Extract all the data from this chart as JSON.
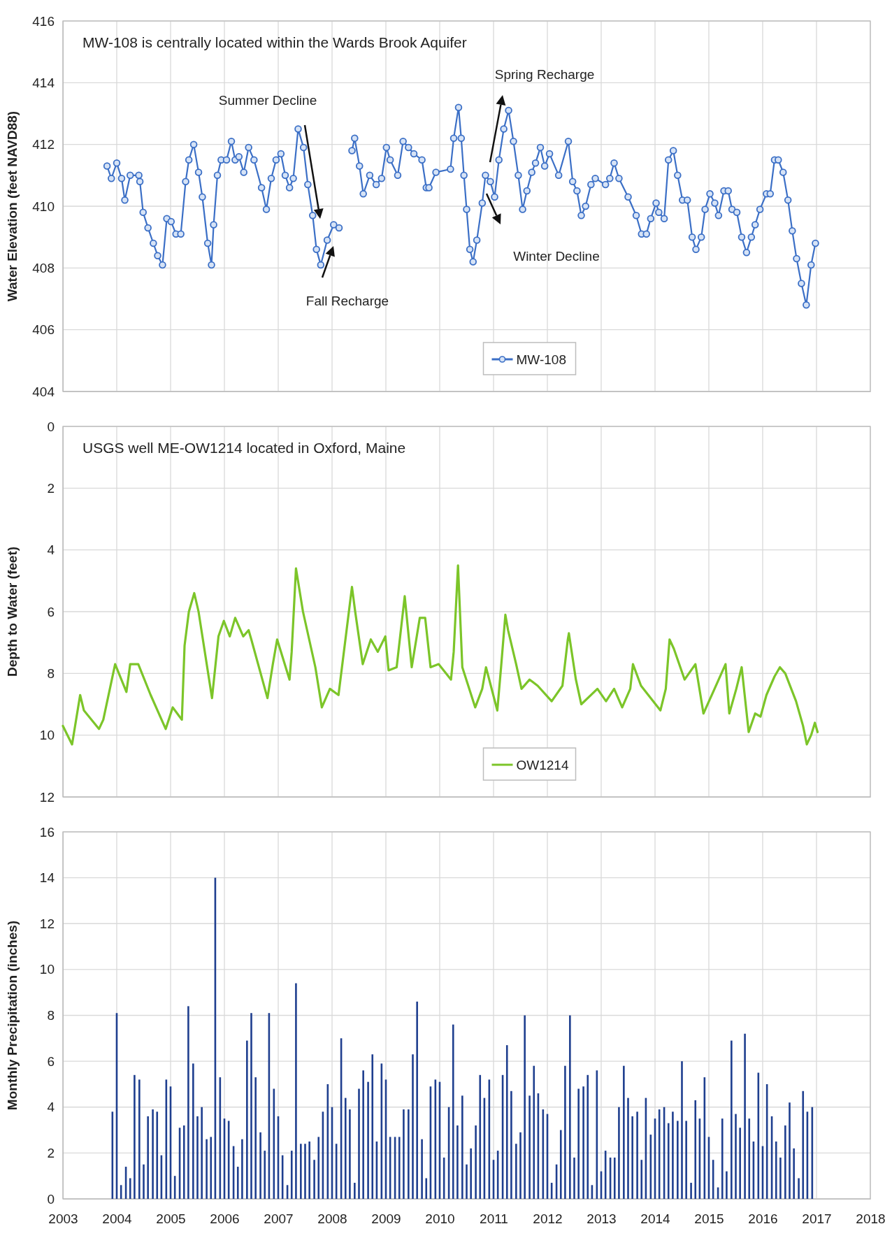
{
  "chart_data": [
    {
      "type": "line",
      "title": "MW-108 is centrally located within the Wards Brook Aquifer",
      "ylabel": "Water Elevation (feet NAVD88)",
      "xlim": [
        2003,
        2018
      ],
      "xticks": [
        2003,
        2004,
        2005,
        2006,
        2007,
        2008,
        2009,
        2010,
        2011,
        2012,
        2013,
        2014,
        2015,
        2016,
        2017,
        2018
      ],
      "ylim": [
        404,
        416
      ],
      "yticks": [
        404,
        406,
        408,
        410,
        412,
        414,
        416
      ],
      "tick_labels": "y",
      "grid": true,
      "legend": "bottom",
      "marker": "circle",
      "annotations": [
        "Summer Decline",
        "Fall Recharge",
        "Spring Recharge",
        "Winter Decline"
      ],
      "series": [
        {
          "name": "MW-108",
          "color": "#3b6fc6",
          "x": [
            2003.82,
            2003.9,
            2004.0,
            2004.09,
            2004.15,
            2004.25,
            2004.41,
            2004.43,
            2004.49,
            2004.58,
            2004.68,
            2004.76,
            2004.85,
            2004.93,
            2005.01,
            2005.1,
            2005.19,
            2005.28,
            2005.34,
            2005.43,
            2005.52,
            2005.59,
            2005.69,
            2005.76,
            2005.8,
            2005.87,
            2005.94,
            2006.04,
            2006.13,
            2006.2,
            2006.27,
            2006.36,
            2006.45,
            2006.55,
            2006.69,
            2006.78,
            2006.87,
            2006.96,
            2007.05,
            2007.13,
            2007.21,
            2007.28,
            2007.37,
            2007.47,
            2007.55,
            2007.64,
            2007.71,
            2007.79,
            2007.91,
            2008.03,
            2008.13,
            2008.25,
            2008.37,
            2008.42,
            2008.51,
            2008.58,
            2008.7,
            2008.82,
            2008.92,
            2009.01,
            2009.08,
            2009.22,
            2009.32,
            2009.42,
            2009.52,
            2009.67,
            2009.75,
            2009.8,
            2009.93,
            2010.2,
            2010.26,
            2010.35,
            2010.4,
            2010.45,
            2010.5,
            2010.56,
            2010.62,
            2010.69,
            2010.79,
            2010.85,
            2010.94,
            2011.02,
            2011.1,
            2011.19,
            2011.28,
            2011.37,
            2011.46,
            2011.54,
            2011.62,
            2011.71,
            2011.78,
            2011.87,
            2011.95,
            2012.04,
            2012.21,
            2012.39,
            2012.47,
            2012.55,
            2012.63,
            2012.71,
            2012.81,
            2012.89,
            2013.08,
            2013.16,
            2013.24,
            2013.33,
            2013.5,
            2013.65,
            2013.75,
            2013.84,
            2013.92,
            2014.02,
            2014.07,
            2014.17,
            2014.25,
            2014.34,
            2014.42,
            2014.51,
            2014.6,
            2014.69,
            2014.76,
            2014.86,
            2014.93,
            2015.02,
            2015.11,
            2015.18,
            2015.28,
            2015.36,
            2015.43,
            2015.52,
            2015.61,
            2015.7,
            2015.79,
            2015.86,
            2015.95,
            2016.07,
            2016.14,
            2016.22,
            2016.29,
            2016.38,
            2016.47,
            2016.55,
            2016.63,
            2016.72,
            2016.81,
            2016.9,
            2016.98
          ],
          "values": [
            411.3,
            410.9,
            411.4,
            410.9,
            410.2,
            411.0,
            411.0,
            410.8,
            409.8,
            409.3,
            408.8,
            408.4,
            408.1,
            409.6,
            409.5,
            409.1,
            409.1,
            410.8,
            411.5,
            412.0,
            411.1,
            410.3,
            408.8,
            408.1,
            409.4,
            411.0,
            411.5,
            411.5,
            412.1,
            411.5,
            411.6,
            411.1,
            411.9,
            411.5,
            410.6,
            409.9,
            410.9,
            411.5,
            411.7,
            411.0,
            410.6,
            410.9,
            412.5,
            411.9,
            410.7,
            409.7,
            408.6,
            408.1,
            408.9,
            409.4,
            409.3,
            null,
            411.8,
            412.2,
            411.3,
            410.4,
            411.0,
            410.7,
            410.9,
            411.9,
            411.5,
            411.0,
            412.1,
            411.9,
            411.7,
            411.5,
            410.6,
            410.6,
            411.1,
            411.2,
            412.2,
            413.2,
            412.2,
            411.0,
            409.9,
            408.6,
            408.2,
            408.9,
            410.1,
            411.0,
            410.8,
            410.3,
            411.5,
            412.5,
            413.1,
            412.1,
            411.0,
            409.9,
            410.5,
            411.1,
            411.4,
            411.9,
            411.3,
            411.7,
            411.0,
            412.1,
            410.8,
            410.5,
            409.7,
            410.0,
            410.7,
            410.9,
            410.7,
            410.9,
            411.4,
            410.9,
            410.3,
            409.7,
            409.1,
            409.1,
            409.6,
            410.1,
            409.8,
            409.6,
            411.5,
            411.8,
            411.0,
            410.2,
            410.2,
            409.0,
            408.6,
            409.0,
            409.9,
            410.4,
            410.1,
            409.7,
            410.5,
            410.5,
            409.9,
            409.8,
            409.0,
            408.5,
            409.0,
            409.4,
            409.9,
            410.4,
            410.4,
            411.5,
            411.5,
            411.1,
            410.2,
            409.2,
            408.3,
            407.5,
            406.8,
            408.1,
            408.8
          ]
        }
      ]
    },
    {
      "type": "line",
      "title": "USGS well ME-OW1214 located in Oxford, Maine",
      "ylabel": "Depth to Water (feet)",
      "xlim": [
        2003,
        2018
      ],
      "xticks": [
        2003,
        2004,
        2005,
        2006,
        2007,
        2008,
        2009,
        2010,
        2011,
        2012,
        2013,
        2014,
        2015,
        2016,
        2017,
        2018
      ],
      "ylim": [
        12,
        0
      ],
      "yticks": [
        0,
        2,
        4,
        6,
        8,
        10,
        12
      ],
      "tick_labels": "y",
      "grid": true,
      "legend": "bottom",
      "series": [
        {
          "name": "OW1214",
          "color": "#7cc529",
          "x": [
            2003.0,
            2003.17,
            2003.32,
            2003.39,
            2003.67,
            2003.75,
            2003.97,
            2004.18,
            2004.25,
            2004.4,
            2004.63,
            2004.91,
            2005.04,
            2005.21,
            2005.26,
            2005.34,
            2005.44,
            2005.52,
            2005.77,
            2005.89,
            2005.99,
            2006.1,
            2006.2,
            2006.35,
            2006.45,
            2006.5,
            2006.8,
            2006.9,
            2006.98,
            2007.21,
            2007.25,
            2007.33,
            2007.46,
            2007.69,
            2007.81,
            2007.96,
            2008.12,
            2008.27,
            2008.37,
            2008.43,
            2008.57,
            2008.72,
            2008.85,
            2008.99,
            2009.05,
            2009.2,
            2009.35,
            2009.48,
            2009.63,
            2009.73,
            2009.83,
            2009.98,
            2010.21,
            2010.26,
            2010.34,
            2010.42,
            2010.66,
            2010.79,
            2010.86,
            2011.07,
            2011.14,
            2011.22,
            2011.27,
            2011.42,
            2011.52,
            2011.67,
            2011.82,
            2012.08,
            2012.28,
            2012.38,
            2012.4,
            2012.53,
            2012.63,
            2012.93,
            2013.09,
            2013.24,
            2013.39,
            2013.54,
            2013.59,
            2013.74,
            2014.1,
            2014.2,
            2014.27,
            2014.35,
            2014.55,
            2014.75,
            2014.9,
            2015.08,
            2015.31,
            2015.38,
            2015.51,
            2015.61,
            2015.74,
            2015.86,
            2015.96,
            2016.07,
            2016.22,
            2016.32,
            2016.42,
            2016.62,
            2016.75,
            2016.82,
            2016.9,
            2016.97,
            2017.02
          ],
          "values": [
            9.7,
            10.3,
            8.7,
            9.2,
            9.8,
            9.5,
            7.7,
            8.6,
            7.7,
            7.7,
            8.7,
            9.8,
            9.1,
            9.5,
            7.1,
            6.0,
            5.4,
            6.0,
            8.8,
            6.8,
            6.3,
            6.8,
            6.2,
            6.8,
            6.6,
            6.9,
            8.8,
            7.7,
            6.9,
            8.2,
            7.3,
            4.6,
            6.0,
            7.8,
            9.1,
            8.5,
            8.7,
            6.6,
            5.2,
            6.0,
            7.7,
            6.9,
            7.3,
            6.8,
            7.9,
            7.8,
            5.5,
            7.8,
            6.2,
            6.2,
            7.8,
            7.7,
            8.2,
            7.3,
            4.5,
            7.8,
            9.1,
            8.5,
            7.8,
            9.2,
            7.8,
            6.1,
            6.6,
            7.7,
            8.5,
            8.2,
            8.4,
            8.9,
            8.4,
            6.9,
            6.7,
            8.2,
            9.0,
            8.5,
            8.9,
            8.5,
            9.1,
            8.5,
            7.7,
            8.4,
            9.2,
            8.5,
            6.9,
            7.2,
            8.2,
            7.7,
            9.3,
            8.6,
            7.7,
            9.3,
            8.5,
            7.8,
            9.9,
            9.3,
            9.4,
            8.7,
            8.1,
            7.8,
            8.0,
            8.9,
            9.7,
            10.3,
            10.0,
            9.6,
            9.9
          ]
        }
      ]
    },
    {
      "type": "bar",
      "ylabel": "Monthly Precipitation (inches)",
      "xlim": [
        2003,
        2018
      ],
      "xticks": [
        2003,
        2004,
        2005,
        2006,
        2007,
        2008,
        2009,
        2010,
        2011,
        2012,
        2013,
        2014,
        2015,
        2016,
        2017,
        2018
      ],
      "ylim": [
        0,
        16
      ],
      "yticks": [
        0,
        2,
        4,
        6,
        8,
        10,
        12,
        14,
        16
      ],
      "grid": true,
      "color": "#1f3f8f",
      "x": [
        2003.92,
        2004.0,
        2004.08,
        2004.17,
        2004.25,
        2004.33,
        2004.42,
        2004.5,
        2004.58,
        2004.67,
        2004.75,
        2004.83,
        2004.92,
        2005.0,
        2005.08,
        2005.17,
        2005.25,
        2005.33,
        2005.42,
        2005.5,
        2005.58,
        2005.67,
        2005.75,
        2005.83,
        2005.92,
        2006.0,
        2006.08,
        2006.17,
        2006.25,
        2006.33,
        2006.42,
        2006.5,
        2006.58,
        2006.67,
        2006.75,
        2006.83,
        2006.92,
        2007.0,
        2007.08,
        2007.17,
        2007.25,
        2007.33,
        2007.42,
        2007.5,
        2007.58,
        2007.67,
        2007.75,
        2007.83,
        2007.92,
        2008.0,
        2008.08,
        2008.17,
        2008.25,
        2008.33,
        2008.42,
        2008.5,
        2008.58,
        2008.67,
        2008.75,
        2008.83,
        2008.92,
        2009.0,
        2009.08,
        2009.17,
        2009.25,
        2009.33,
        2009.42,
        2009.5,
        2009.58,
        2009.67,
        2009.75,
        2009.83,
        2009.92,
        2010.0,
        2010.08,
        2010.17,
        2010.25,
        2010.33,
        2010.42,
        2010.5,
        2010.58,
        2010.67,
        2010.75,
        2010.83,
        2010.92,
        2011.0,
        2011.08,
        2011.17,
        2011.25,
        2011.33,
        2011.42,
        2011.5,
        2011.58,
        2011.67,
        2011.75,
        2011.83,
        2011.92,
        2012.0,
        2012.08,
        2012.17,
        2012.25,
        2012.33,
        2012.42,
        2012.5,
        2012.58,
        2012.67,
        2012.75,
        2012.83,
        2012.92,
        2013.0,
        2013.08,
        2013.17,
        2013.25,
        2013.33,
        2013.42,
        2013.5,
        2013.58,
        2013.67,
        2013.75,
        2013.83,
        2013.92,
        2014.0,
        2014.08,
        2014.17,
        2014.25,
        2014.33,
        2014.42,
        2014.5,
        2014.58,
        2014.67,
        2014.75,
        2014.83,
        2014.92,
        2015.0,
        2015.08,
        2015.17,
        2015.25,
        2015.33,
        2015.42,
        2015.5,
        2015.58,
        2015.67,
        2015.75,
        2015.83,
        2015.92,
        2016.0,
        2016.08,
        2016.17,
        2016.25,
        2016.33,
        2016.42,
        2016.5,
        2016.58,
        2016.67,
        2016.75,
        2016.83,
        2016.92
      ],
      "values": [
        3.8,
        8.1,
        0.6,
        1.4,
        0.9,
        5.4,
        5.2,
        1.5,
        3.6,
        3.9,
        3.8,
        1.9,
        5.2,
        4.9,
        1.0,
        3.1,
        3.2,
        8.4,
        5.9,
        3.6,
        4.0,
        2.6,
        2.7,
        14.0,
        5.3,
        3.5,
        3.4,
        2.3,
        1.4,
        2.6,
        6.9,
        8.1,
        5.3,
        2.9,
        2.1,
        8.1,
        4.8,
        3.6,
        1.9,
        0.6,
        2.1,
        9.4,
        2.4,
        2.4,
        2.5,
        1.7,
        2.7,
        3.8,
        5.0,
        4.0,
        2.4,
        7.0,
        4.4,
        3.9,
        0.7,
        4.8,
        5.6,
        5.1,
        6.3,
        2.5,
        5.9,
        5.2,
        2.7,
        2.7,
        2.7,
        3.9,
        3.9,
        6.3,
        8.6,
        2.6,
        0.9,
        4.9,
        5.2,
        5.1,
        1.8,
        4.0,
        7.6,
        3.2,
        4.5,
        1.5,
        2.2,
        3.2,
        5.4,
        4.4,
        5.2,
        1.7,
        2.1,
        5.4,
        6.7,
        4.7,
        2.4,
        2.9,
        8.0,
        4.5,
        5.8,
        4.6,
        3.9,
        3.7,
        0.7,
        1.5,
        3.0,
        5.8,
        8.0,
        1.8,
        4.8,
        4.9,
        5.4,
        0.6,
        5.6,
        1.2,
        2.1,
        1.8,
        1.8,
        4.0,
        5.8,
        4.4,
        3.6,
        3.8,
        1.7,
        4.4,
        2.8,
        3.5,
        3.9,
        4.0,
        3.3,
        3.8,
        3.4,
        6.0,
        3.4,
        0.7,
        4.3,
        3.5,
        5.3,
        2.7,
        1.7,
        0.5,
        3.5,
        1.2,
        6.9,
        3.7,
        3.1,
        7.2,
        3.5,
        2.5,
        5.5,
        2.3,
        5.0,
        3.6,
        2.5,
        1.8,
        3.2,
        4.2,
        2.2,
        0.9,
        4.7,
        3.8,
        4.0
      ]
    }
  ]
}
